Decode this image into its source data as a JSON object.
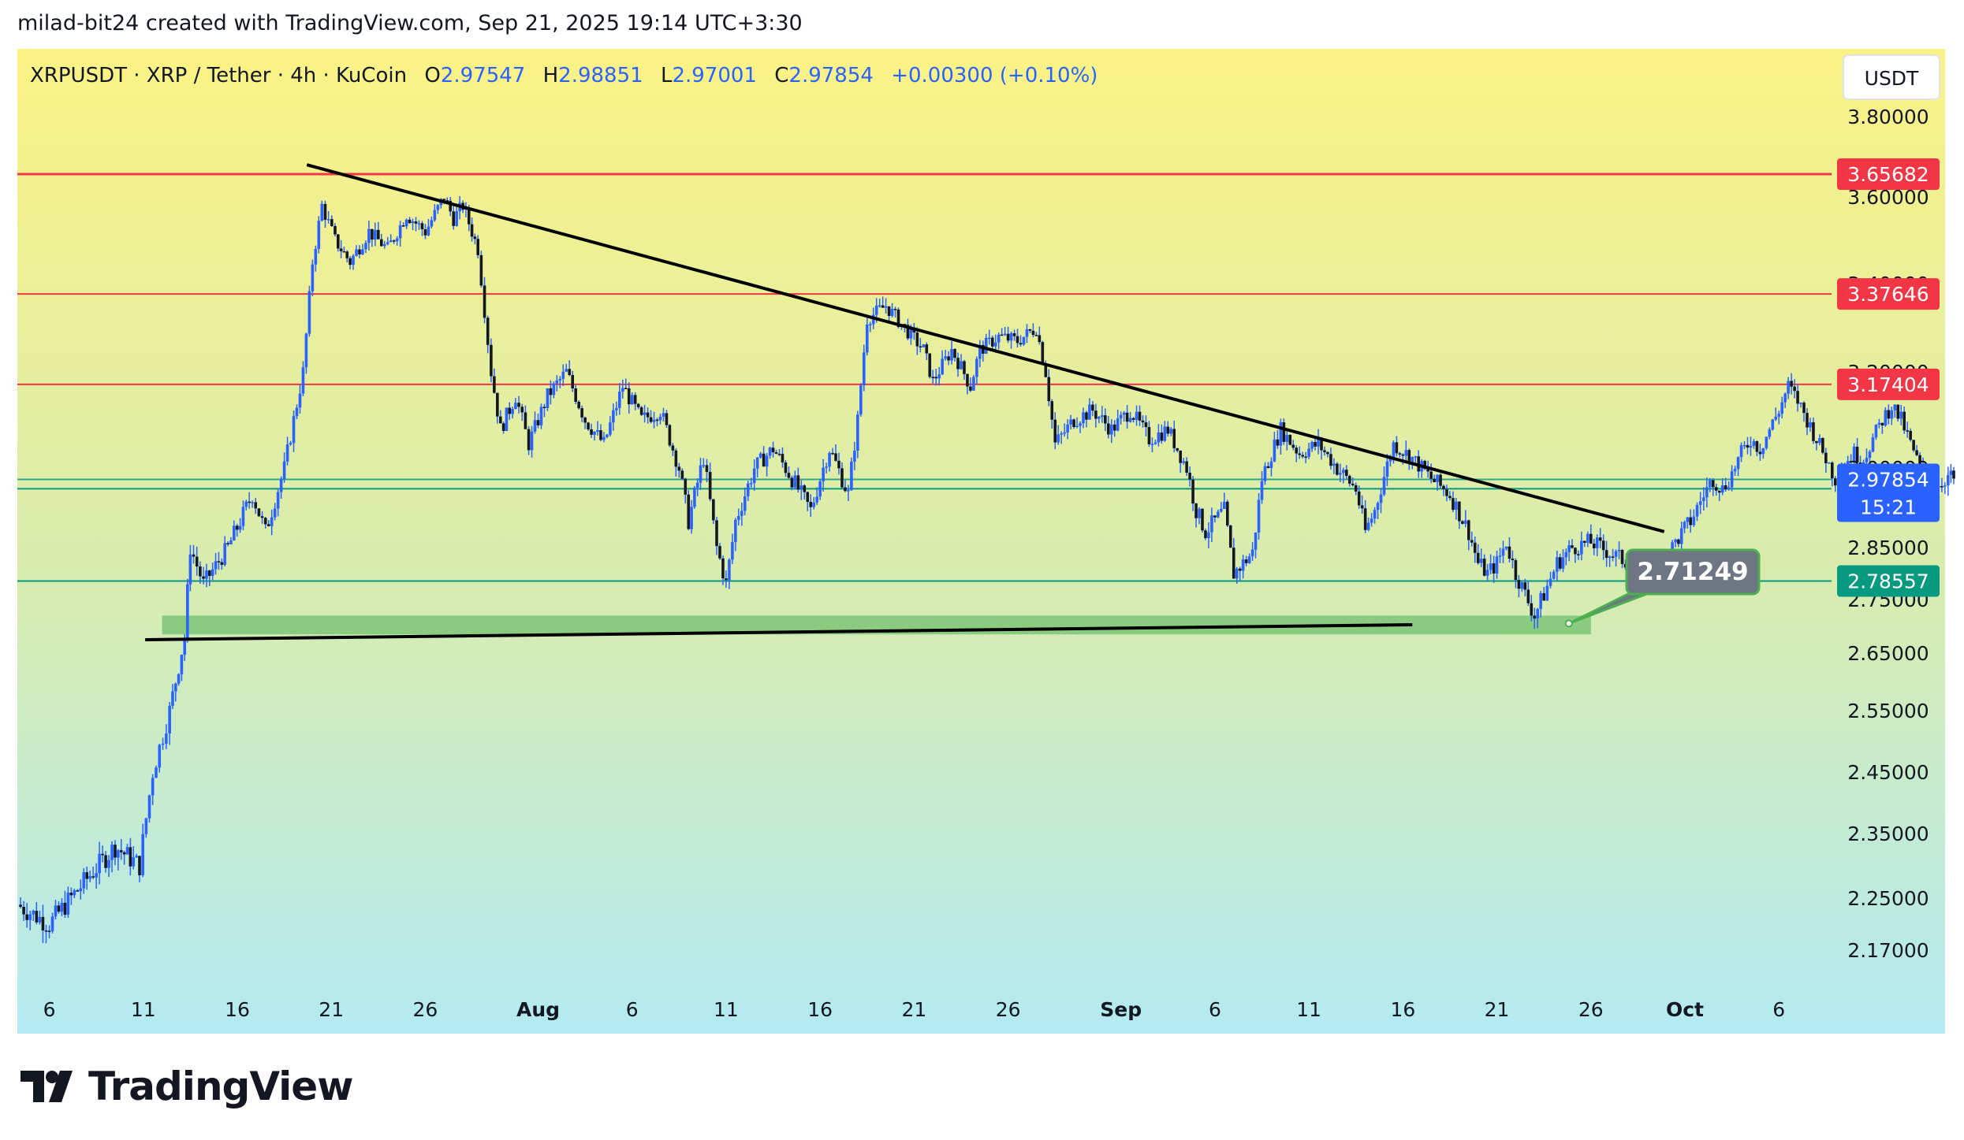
{
  "caption": "milad-bit24 created with TradingView.com, Sep 21, 2025 19:14 UTC+3:30",
  "brand": {
    "name": "TradingView"
  },
  "colors": {
    "bg_top": "#fbf284",
    "bg_mid": "#d7ecb0",
    "bg_bottom": "#b3eaf2",
    "candle": "#2962ff",
    "wick": "#2962ff",
    "resistance": "#f23645",
    "support": "#089981",
    "current": "#2962ff",
    "zone": "#7cc576",
    "callout": "#6e7684",
    "callout_border": "#4caf50"
  },
  "chart_data": {
    "type": "candlestick",
    "symbol": "XRPUSDT",
    "title": "XRPUSDT · XRP / Tether · 4h · KuCoin",
    "ohlc": {
      "o_label": "O",
      "o": "2.97547",
      "h_label": "H",
      "h": "2.98851",
      "l_label": "L",
      "l": "2.97001",
      "c_label": "C",
      "c": "2.97854",
      "change": "+0.00300 (+0.10%)"
    },
    "currency": "USDT",
    "y_ticks": [
      "3.80000",
      "3.60000",
      "3.40000",
      "3.20000",
      "3.00000",
      "2.85000",
      "2.75000",
      "2.65000",
      "2.55000",
      "2.45000",
      "2.35000",
      "2.25000",
      "2.17000"
    ],
    "x_ticks": [
      "6",
      "11",
      "16",
      "21",
      "26",
      "Aug",
      "6",
      "11",
      "16",
      "21",
      "26",
      "Sep",
      "6",
      "11",
      "16",
      "21",
      "26",
      "Oct",
      "6"
    ],
    "x_tick_days": [
      6,
      11,
      16,
      21,
      26,
      32,
      37,
      42,
      47,
      52,
      57,
      63,
      68,
      73,
      78,
      83,
      88,
      93,
      98
    ],
    "x_range_days": [
      4.3,
      100.8
    ],
    "price_scale_anchors": [
      [
        2.17,
        2.17
      ],
      [
        2.25,
        2.25
      ],
      [
        2.35,
        2.35
      ],
      [
        2.45,
        2.45
      ],
      [
        2.55,
        2.55
      ],
      [
        2.65,
        2.65
      ],
      [
        2.75,
        2.75
      ],
      [
        2.85,
        2.85
      ],
      [
        3.0,
        3.0
      ],
      [
        3.2,
        3.2
      ],
      [
        3.4,
        3.4
      ],
      [
        3.6,
        3.6
      ],
      [
        3.8,
        3.8
      ]
    ],
    "levels": [
      {
        "value": 3.65682,
        "label": "3.65682",
        "kind": "resistance"
      },
      {
        "value": 3.37646,
        "label": "3.37646",
        "kind": "resistance"
      },
      {
        "value": 3.17404,
        "label": "3.17404",
        "kind": "resistance"
      },
      {
        "value": 2.96077,
        "label": "2.96077",
        "kind": "support"
      },
      {
        "value": 2.78557,
        "label": "2.78557",
        "kind": "support"
      }
    ],
    "current_price": {
      "value": 2.97854,
      "label": "2.97854",
      "countdown": "15:21"
    },
    "callout": {
      "label": "2.71249",
      "value": 2.71249
    },
    "demand_zone": {
      "from": 2.685,
      "to": 2.72,
      "start_day": 12.0,
      "end_day": 88.0
    },
    "trendlines": [
      {
        "name": "descending",
        "from": {
          "day": 19.7,
          "price": 3.68
        },
        "to": {
          "day": 91.9,
          "price": 2.88
        }
      },
      {
        "name": "base",
        "from": {
          "day": 11.1,
          "price": 2.675
        },
        "to": {
          "day": 78.5,
          "price": 2.703
        }
      }
    ],
    "path": [
      [
        4.3,
        2.24
      ],
      [
        6,
        2.21
      ],
      [
        8,
        2.28
      ],
      [
        9.5,
        2.33
      ],
      [
        10.8,
        2.3
      ],
      [
        11.5,
        2.45
      ],
      [
        12.4,
        2.55
      ],
      [
        13.2,
        2.68
      ],
      [
        13.5,
        2.85
      ],
      [
        14.2,
        2.78
      ],
      [
        15.5,
        2.85
      ],
      [
        16.8,
        2.95
      ],
      [
        17.5,
        2.88
      ],
      [
        18.5,
        3.0
      ],
      [
        19.5,
        3.2
      ],
      [
        20,
        3.45
      ],
      [
        20.5,
        3.58
      ],
      [
        21.2,
        3.5
      ],
      [
        22,
        3.45
      ],
      [
        23,
        3.52
      ],
      [
        24,
        3.48
      ],
      [
        25,
        3.56
      ],
      [
        26,
        3.52
      ],
      [
        27,
        3.6
      ],
      [
        27.5,
        3.55
      ],
      [
        28,
        3.58
      ],
      [
        28.8,
        3.48
      ],
      [
        29.5,
        3.2
      ],
      [
        30,
        3.08
      ],
      [
        30.8,
        3.15
      ],
      [
        31.5,
        3.05
      ],
      [
        32.5,
        3.15
      ],
      [
        33.5,
        3.2
      ],
      [
        34.5,
        3.1
      ],
      [
        35.5,
        3.05
      ],
      [
        36.5,
        3.17
      ],
      [
        37.5,
        3.1
      ],
      [
        38.5,
        3.12
      ],
      [
        39.5,
        3.0
      ],
      [
        40,
        2.9
      ],
      [
        40.8,
        3.02
      ],
      [
        41.5,
        2.85
      ],
      [
        42,
        2.78
      ],
      [
        42.5,
        2.9
      ],
      [
        43.5,
        3.0
      ],
      [
        44.5,
        3.04
      ],
      [
        45.5,
        2.98
      ],
      [
        46.5,
        2.92
      ],
      [
        47.5,
        3.04
      ],
      [
        48.5,
        2.95
      ],
      [
        49,
        3.1
      ],
      [
        49.5,
        3.32
      ],
      [
        50.5,
        3.35
      ],
      [
        51.5,
        3.3
      ],
      [
        52.5,
        3.25
      ],
      [
        53,
        3.18
      ],
      [
        54,
        3.25
      ],
      [
        55,
        3.17
      ],
      [
        55.5,
        3.25
      ],
      [
        56.5,
        3.28
      ],
      [
        57.5,
        3.27
      ],
      [
        58.5,
        3.3
      ],
      [
        59,
        3.2
      ],
      [
        59.5,
        3.05
      ],
      [
        60.5,
        3.1
      ],
      [
        61.5,
        3.12
      ],
      [
        62.5,
        3.08
      ],
      [
        63.5,
        3.12
      ],
      [
        64.5,
        3.06
      ],
      [
        65.5,
        3.08
      ],
      [
        66.5,
        3.0
      ],
      [
        67,
        2.92
      ],
      [
        67.5,
        2.88
      ],
      [
        68.5,
        2.92
      ],
      [
        69,
        2.8
      ],
      [
        69.5,
        2.82
      ],
      [
        70,
        2.84
      ],
      [
        70.5,
        2.98
      ],
      [
        71.5,
        3.08
      ],
      [
        72.5,
        3.03
      ],
      [
        73.5,
        3.05
      ],
      [
        74.5,
        3.0
      ],
      [
        75.5,
        2.96
      ],
      [
        76,
        2.88
      ],
      [
        76.5,
        2.92
      ],
      [
        77.5,
        3.05
      ],
      [
        78.5,
        3.02
      ],
      [
        79.5,
        2.98
      ],
      [
        80.5,
        2.95
      ],
      [
        81.5,
        2.88
      ],
      [
        82,
        2.82
      ],
      [
        82.5,
        2.8
      ],
      [
        83,
        2.82
      ],
      [
        83.5,
        2.86
      ],
      [
        84,
        2.8
      ],
      [
        84.5,
        2.76
      ],
      [
        85,
        2.72
      ],
      [
        85.5,
        2.76
      ],
      [
        86.2,
        2.82
      ],
      [
        87,
        2.85
      ],
      [
        88,
        2.86
      ],
      [
        89,
        2.84
      ],
      [
        90,
        2.82
      ],
      [
        90.5,
        2.79
      ],
      [
        91.2,
        2.8
      ],
      [
        92,
        2.83
      ],
      [
        92.5,
        2.86
      ],
      [
        93.3,
        2.9
      ],
      [
        94,
        2.95
      ],
      [
        94.5,
        2.98
      ],
      [
        95,
        2.96
      ],
      [
        95.5,
        2.99
      ],
      [
        96,
        3.03
      ],
      [
        96.5,
        3.06
      ],
      [
        97,
        3.04
      ],
      [
        97.5,
        3.08
      ],
      [
        98,
        3.12
      ],
      [
        98.5,
        3.17
      ],
      [
        99,
        3.14
      ],
      [
        99.5,
        3.1
      ],
      [
        100,
        3.06
      ],
      [
        100.5,
        3.02
      ],
      [
        101,
        2.98
      ],
      [
        101.5,
        3.01
      ],
      [
        102,
        3.03
      ],
      [
        102.5,
        3.02
      ],
      [
        103,
        3.06
      ],
      [
        103.5,
        3.1
      ],
      [
        104,
        3.13
      ],
      [
        104.5,
        3.1
      ],
      [
        105,
        3.05
      ],
      [
        105.5,
        3.0
      ],
      [
        106,
        2.98
      ],
      [
        106.5,
        2.97
      ],
      [
        107,
        2.985
      ],
      [
        107.3,
        2.97854
      ]
    ]
  }
}
